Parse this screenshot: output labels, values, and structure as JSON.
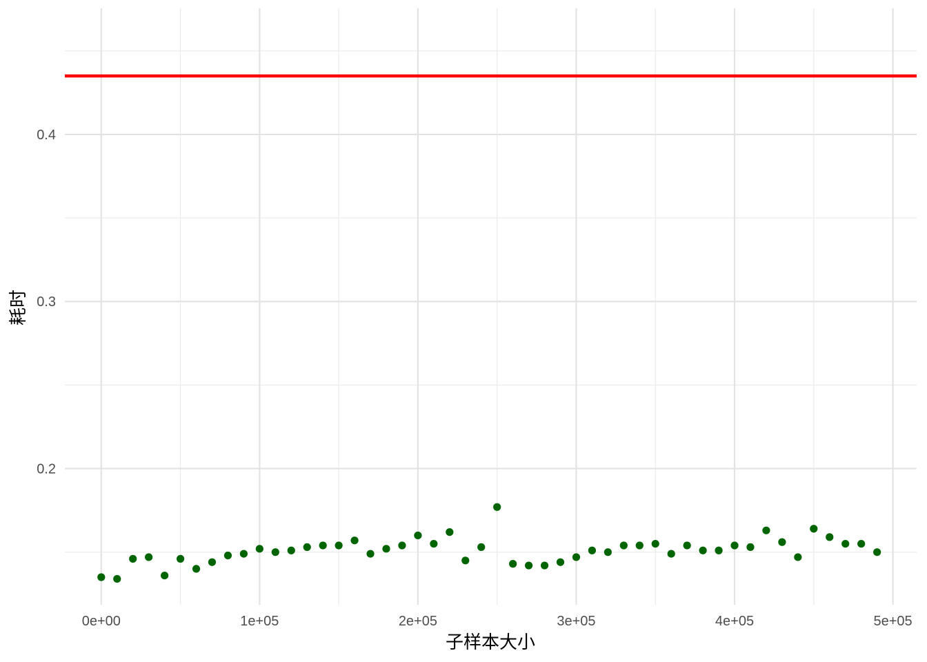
{
  "chart_data": {
    "type": "scatter",
    "title": "",
    "xlabel": "子样本大小",
    "ylabel": "耗时",
    "xlim": [
      -23000,
      515000
    ],
    "ylim": [
      0.1185,
      0.4755
    ],
    "x_ticks": [
      0,
      100000,
      200000,
      300000,
      400000,
      500000
    ],
    "x_tick_labels": [
      "0e+00",
      "1e+05",
      "2e+05",
      "3e+05",
      "4e+05",
      "5e+05"
    ],
    "y_ticks": [
      0.2,
      0.3,
      0.4
    ],
    "y_tick_labels": [
      "0.2",
      "0.3",
      "0.4"
    ],
    "grid": true,
    "legend": "none",
    "point_color": "#006400",
    "reference_line": {
      "orientation": "horizontal",
      "y": 0.435,
      "color": "#ff0000"
    },
    "series": [
      {
        "x": [
          0,
          10000,
          20000,
          30000,
          40000,
          50000,
          60000,
          70000,
          80000,
          90000,
          100000,
          110000,
          120000,
          130000,
          140000,
          150000,
          160000,
          170000,
          180000,
          190000,
          200000,
          210000,
          220000,
          230000,
          240000,
          250000,
          260000,
          270000,
          280000,
          290000,
          300000,
          310000,
          320000,
          330000,
          340000,
          350000,
          360000,
          370000,
          380000,
          390000,
          400000,
          410000,
          420000,
          430000,
          440000,
          450000,
          460000,
          470000,
          480000,
          490000
        ],
        "y": [
          0.135,
          0.134,
          0.146,
          0.147,
          0.136,
          0.146,
          0.14,
          0.144,
          0.148,
          0.149,
          0.152,
          0.15,
          0.151,
          0.153,
          0.154,
          0.154,
          0.157,
          0.149,
          0.152,
          0.154,
          0.16,
          0.155,
          0.162,
          0.145,
          0.153,
          0.177,
          0.143,
          0.142,
          0.142,
          0.144,
          0.147,
          0.151,
          0.15,
          0.154,
          0.154,
          0.155,
          0.149,
          0.154,
          0.151,
          0.151,
          0.154,
          0.153,
          0.163,
          0.156,
          0.147,
          0.164,
          0.159,
          0.155,
          0.155,
          0.15
        ]
      }
    ]
  }
}
